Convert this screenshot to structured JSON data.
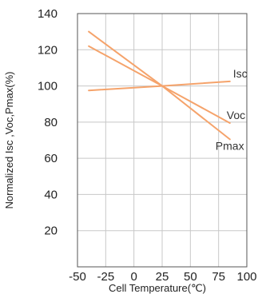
{
  "chart_data": {
    "type": "line",
    "title": "",
    "xlabel": "Cell Temperature(℃)",
    "ylabel": "Normalized Isc ,Voc,Pmax(%)",
    "xlim": [
      -50,
      100
    ],
    "ylim": [
      0,
      140
    ],
    "x_ticks": [
      "-50",
      "-25",
      "0",
      "25",
      "50",
      "75",
      "100"
    ],
    "y_ticks": [
      "20",
      "40",
      "60",
      "80",
      "100",
      "120",
      "140"
    ],
    "grid": true,
    "series_color": "#f5a36b",
    "series": [
      {
        "name": "Isc",
        "x": [
          -40,
          25,
          85
        ],
        "y": [
          97.5,
          100,
          102.5
        ]
      },
      {
        "name": "Voc",
        "x": [
          -40,
          25,
          85
        ],
        "y": [
          122,
          100,
          79.5
        ]
      },
      {
        "name": "Pmax",
        "x": [
          -40,
          25,
          85
        ],
        "y": [
          130,
          100,
          70.5
        ]
      }
    ]
  }
}
